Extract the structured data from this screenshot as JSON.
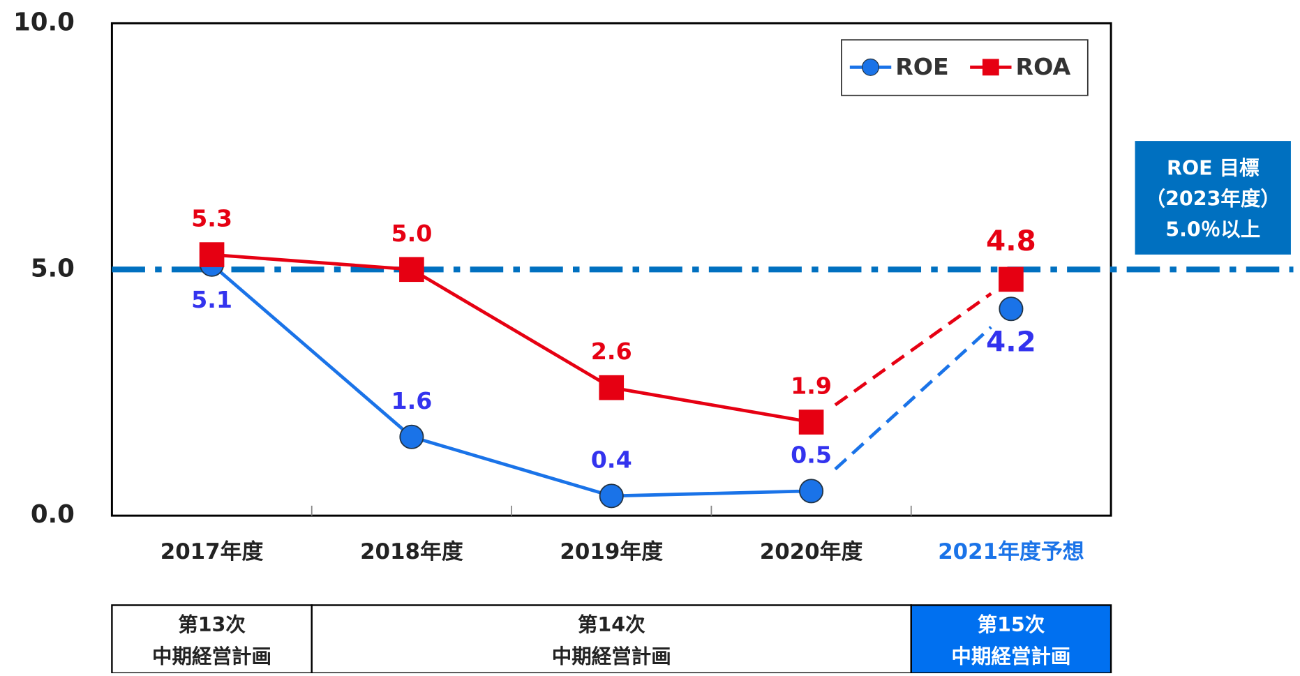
{
  "chart_data": {
    "type": "line",
    "categories": [
      "2017年度",
      "2018年度",
      "2019年度",
      "2020年度",
      "2021年度予想"
    ],
    "series": [
      {
        "name": "ROE",
        "color": "#1a73e8",
        "values": [
          5.1,
          1.6,
          0.4,
          0.5,
          4.2
        ],
        "value_labels": [
          "5.1",
          "1.6",
          "0.4",
          "0.5",
          "4.2"
        ]
      },
      {
        "name": "ROA",
        "color": "#e60012",
        "values": [
          5.3,
          5.0,
          2.6,
          1.9,
          4.8
        ],
        "value_labels": [
          "5.3",
          "5.0",
          "2.6",
          "1.9",
          "4.8"
        ]
      }
    ],
    "ylim": [
      0,
      10
    ],
    "yticks": [
      {
        "value": 0,
        "label": "0.0"
      },
      {
        "value": 5,
        "label": "5.0"
      },
      {
        "value": 10,
        "label": "10.0"
      }
    ],
    "target_line": 5,
    "target_box": [
      "ROE 目標",
      "（2023年度）",
      "5.0％以上"
    ],
    "plans": [
      [
        "第13次",
        "中期経営計画"
      ],
      [
        "第14次",
        "中期経営計画"
      ],
      [
        "第15次",
        "中期経営計画"
      ]
    ],
    "legend": "upper right"
  }
}
